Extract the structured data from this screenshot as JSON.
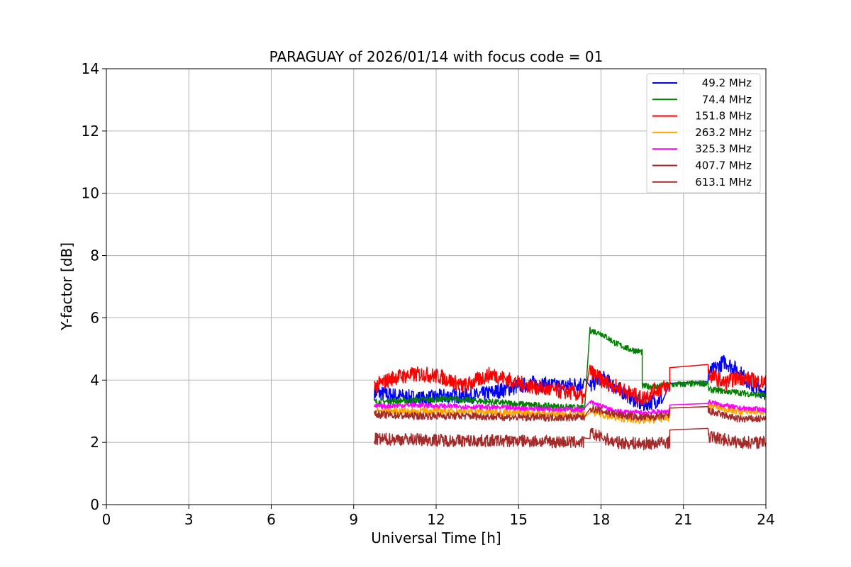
{
  "chart_data": {
    "type": "line",
    "title": "PARAGUAY of 2026/01/14 with focus code = 01",
    "xlabel": "Universal Time [h]",
    "ylabel": "Y-factor [dB]",
    "xlim": [
      0,
      24
    ],
    "ylim": [
      0,
      14
    ],
    "xticks": [
      0,
      3,
      6,
      9,
      12,
      15,
      18,
      21,
      24
    ],
    "yticks": [
      0,
      2,
      4,
      6,
      8,
      10,
      12,
      14
    ],
    "grid": true,
    "legend_position": "top-right",
    "series": [
      {
        "name": " 49.2 MHz",
        "color": "#0000ff",
        "segments": [
          {
            "x": [
              9.75,
              10.5,
              11.5,
              12.5,
              13.5,
              14.5,
              15.5,
              16.5,
              17.4
            ],
            "y": [
              3.6,
              3.5,
              3.4,
              3.5,
              3.5,
              3.7,
              3.9,
              3.8,
              3.9
            ]
          },
          {
            "x": [
              17.6,
              18.0,
              18.5,
              19.0,
              19.5,
              20.2
            ],
            "y": [
              3.8,
              4.1,
              3.8,
              3.5,
              3.2,
              3.4
            ]
          },
          {
            "x": [
              20.5,
              21.9
            ],
            "y": [
              3.9,
              3.95
            ]
          },
          {
            "x": [
              21.9,
              22.5,
              23.0,
              23.5,
              24.0
            ],
            "y": [
              4.2,
              4.6,
              4.3,
              3.8,
              3.6
            ]
          }
        ],
        "noise": 0.25
      },
      {
        "name": " 74.4 MHz",
        "color": "#008000",
        "segments": [
          {
            "x": [
              9.75,
              11.0,
              12.5,
              14.0,
              15.5,
              17.4
            ],
            "y": [
              3.3,
              3.35,
              3.4,
              3.3,
              3.2,
              3.1
            ]
          },
          {
            "x": [
              17.6,
              18.0,
              18.5,
              19.0,
              19.5
            ],
            "y": [
              5.6,
              5.5,
              5.2,
              5.0,
              4.9
            ]
          },
          {
            "x": [
              19.5,
              20.0,
              20.5,
              21.9
            ],
            "y": [
              3.8,
              3.8,
              3.85,
              3.9
            ]
          },
          {
            "x": [
              21.9,
              23.0,
              24.0
            ],
            "y": [
              3.7,
              3.6,
              3.5
            ]
          }
        ],
        "noise": 0.1
      },
      {
        "name": "151.8 MHz",
        "color": "#ff0000",
        "segments": [
          {
            "x": [
              9.75,
              10.5,
              11.5,
              12.2,
              13.0,
              14.0,
              15.0,
              16.0,
              17.0,
              17.4
            ],
            "y": [
              3.8,
              4.1,
              4.2,
              4.1,
              3.8,
              4.2,
              3.9,
              3.7,
              3.6,
              3.4
            ]
          },
          {
            "x": [
              17.6,
              18.0,
              18.5,
              19.0,
              19.5,
              20.0,
              20.5
            ],
            "y": [
              4.3,
              4.0,
              3.8,
              3.6,
              3.4,
              3.7,
              3.8
            ]
          },
          {
            "x": [
              20.5,
              21.9
            ],
            "y": [
              4.4,
              4.5
            ]
          },
          {
            "x": [
              21.9,
              22.5,
              23.0,
              23.5,
              24.0
            ],
            "y": [
              4.2,
              3.9,
              4.1,
              4.0,
              3.9
            ]
          }
        ],
        "noise": 0.25
      },
      {
        "name": "263.2 MHz",
        "color": "#ffa500",
        "segments": [
          {
            "x": [
              9.75,
              11.0,
              13.0,
              15.0,
              17.4
            ],
            "y": [
              3.0,
              3.0,
              3.0,
              2.95,
              2.9
            ]
          },
          {
            "x": [
              17.6,
              18.5,
              19.5,
              20.5
            ],
            "y": [
              3.0,
              2.8,
              2.7,
              2.8
            ]
          },
          {
            "x": [
              20.5,
              21.9
            ],
            "y": [
              3.1,
              3.15
            ]
          },
          {
            "x": [
              21.9,
              23.0,
              24.0
            ],
            "y": [
              3.2,
              3.0,
              3.0
            ]
          }
        ],
        "noise": 0.12
      },
      {
        "name": "325.3 MHz",
        "color": "#ff00ff",
        "segments": [
          {
            "x": [
              9.75,
              11.0,
              13.0,
              15.0,
              17.4
            ],
            "y": [
              3.15,
              3.2,
              3.15,
              3.1,
              3.05
            ]
          },
          {
            "x": [
              17.6,
              18.5,
              19.5,
              20.5
            ],
            "y": [
              3.3,
              3.0,
              2.95,
              3.0
            ]
          },
          {
            "x": [
              20.5,
              21.9
            ],
            "y": [
              3.2,
              3.25
            ]
          },
          {
            "x": [
              21.9,
              23.0,
              24.0
            ],
            "y": [
              3.3,
              3.1,
              3.05
            ]
          }
        ],
        "noise": 0.08
      },
      {
        "name": "407.7 MHz",
        "color": "#a52a2a",
        "segments": [
          {
            "x": [
              9.75,
              11.0,
              13.0,
              15.0,
              17.4
            ],
            "y": [
              2.9,
              2.85,
              2.85,
              2.8,
              2.8
            ]
          },
          {
            "x": [
              17.6,
              18.5,
              19.5,
              20.5
            ],
            "y": [
              3.1,
              2.9,
              2.8,
              2.85
            ]
          },
          {
            "x": [
              20.5,
              21.9
            ],
            "y": [
              3.1,
              3.15
            ]
          },
          {
            "x": [
              21.9,
              23.0,
              24.0
            ],
            "y": [
              3.0,
              2.75,
              2.75
            ]
          }
        ],
        "noise": 0.12
      },
      {
        "name": "613.1 MHz",
        "color": "#a52a2a",
        "segments": [
          {
            "x": [
              9.75,
              11.0,
              13.0,
              15.0,
              17.4
            ],
            "y": [
              2.1,
              2.1,
              2.05,
              2.05,
              2.0
            ]
          },
          {
            "x": [
              17.6,
              18.5,
              19.5,
              20.5
            ],
            "y": [
              2.3,
              2.0,
              1.95,
              2.0
            ]
          },
          {
            "x": [
              20.5,
              21.9
            ],
            "y": [
              2.4,
              2.45
            ]
          },
          {
            "x": [
              21.9,
              23.0,
              24.0
            ],
            "y": [
              2.2,
              2.0,
              2.0
            ]
          }
        ],
        "noise": 0.2
      }
    ]
  }
}
